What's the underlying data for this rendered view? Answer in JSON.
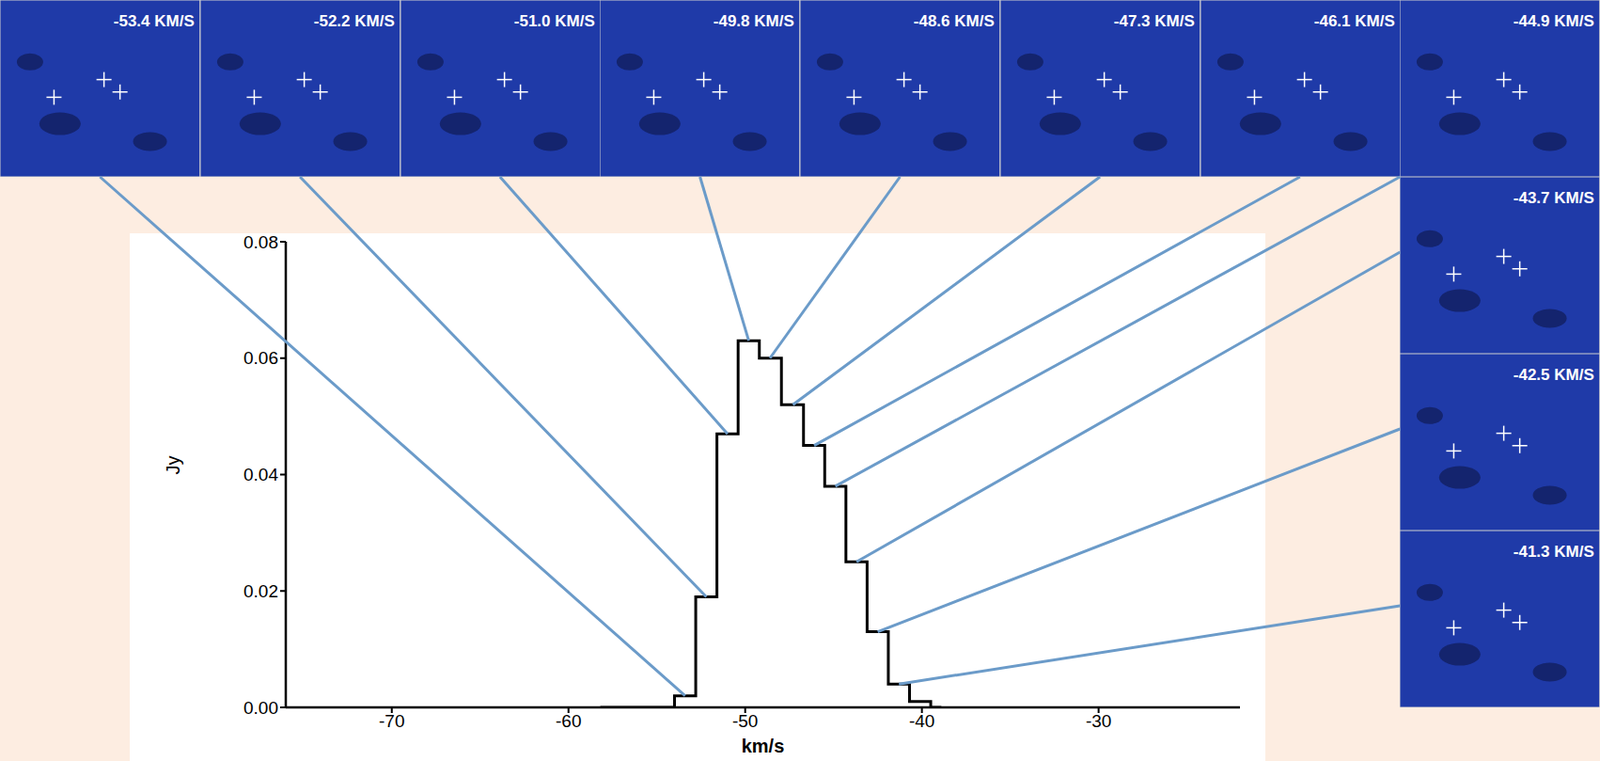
{
  "chart_data": {
    "type": "line",
    "line_style": "step",
    "color": "#000000",
    "x_label": "km/s",
    "y_label": "Jy",
    "x": [
      -58.2,
      -57.0,
      -55.8,
      -54.6,
      -53.4,
      -52.2,
      -51.0,
      -49.8,
      -48.6,
      -47.3,
      -46.1,
      -44.9,
      -43.7,
      -42.5,
      -41.3,
      -40.1,
      -38.9
    ],
    "values": [
      0,
      0,
      0,
      0,
      0.002,
      0.019,
      0.047,
      0.063,
      0.06,
      0.052,
      0.045,
      0.038,
      0.025,
      0.013,
      0.004,
      0.001,
      0
    ],
    "xlim": [
      -76,
      -22
    ],
    "xticks": [
      -70,
      -60,
      -50,
      -40,
      -30
    ],
    "ylim": [
      0,
      0.08
    ],
    "yticks": [
      {
        "value": 0,
        "label": "0.00"
      },
      {
        "value": 0.02,
        "label": "0.02"
      },
      {
        "value": 0.04,
        "label": "0.04"
      },
      {
        "value": 0.06,
        "label": "0.06"
      },
      {
        "value": 0.08,
        "label": "0.08"
      }
    ],
    "annotations": [
      {
        "text": "-53.4 KM/S",
        "x": -53.4
      },
      {
        "text": "-52.2 KM/S",
        "x": -52.2
      },
      {
        "text": "-51.0 KM/S",
        "x": -51.0
      },
      {
        "text": "-49.8 KM/S",
        "x": -49.8
      },
      {
        "text": "-48.6 KM/S",
        "x": -48.6
      },
      {
        "text": "-47.3 KM/S",
        "x": -47.3
      },
      {
        "text": "-46.1 KM/S",
        "x": -46.1
      },
      {
        "text": "-44.9 KM/S",
        "x": -44.9
      },
      {
        "text": "-43.7 KM/S",
        "x": -43.7
      },
      {
        "text": "-42.5 KM/S",
        "x": -42.5
      },
      {
        "text": "-41.3 KM/S",
        "x": -41.3
      }
    ]
  }
}
